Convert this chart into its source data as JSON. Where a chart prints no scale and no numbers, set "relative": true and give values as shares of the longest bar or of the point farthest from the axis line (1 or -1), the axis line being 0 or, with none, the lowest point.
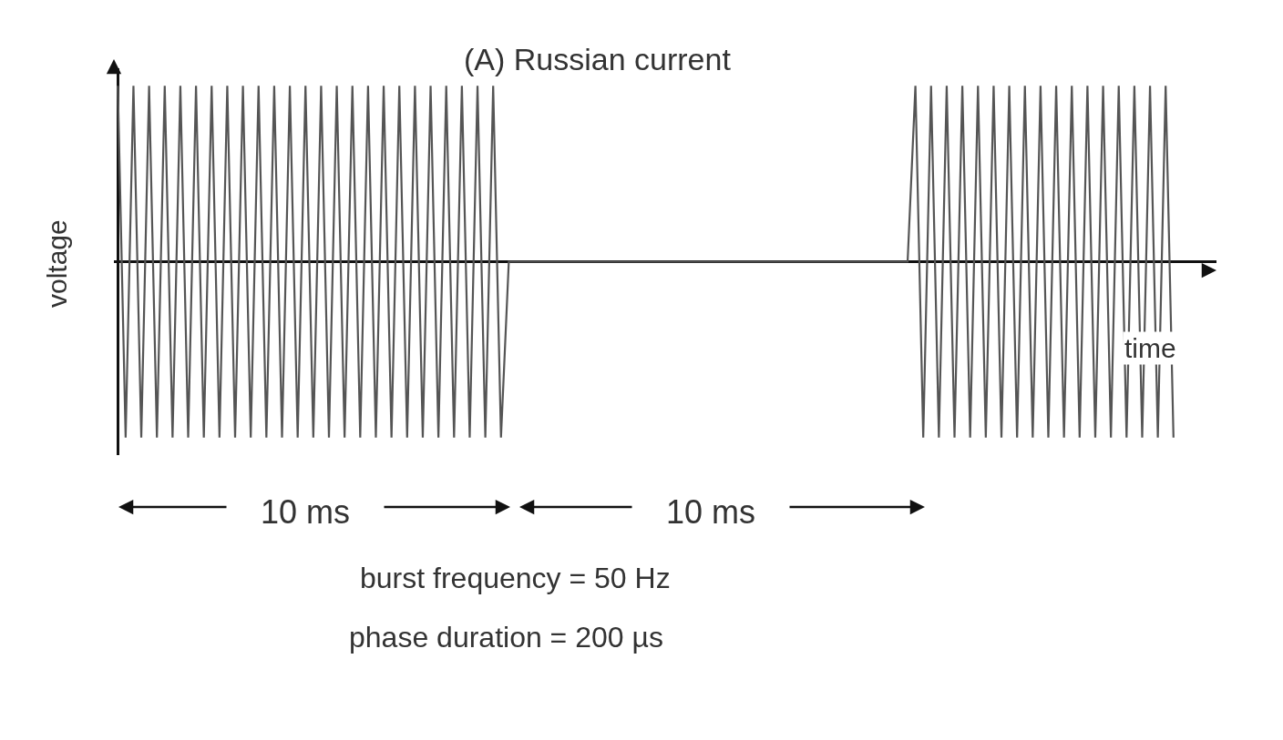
{
  "chart_data": {
    "type": "line",
    "title": "(A) Russian current",
    "xlabel": "time",
    "ylabel": "voltage",
    "relative": true,
    "color": "#555555",
    "categories": [
      null,
      null,
      null,
      null,
      null,
      null,
      null,
      null,
      null,
      null,
      null,
      null,
      null,
      null,
      null,
      null,
      null,
      null,
      null,
      null,
      null,
      null,
      null,
      null,
      null,
      null,
      null,
      null,
      null,
      null,
      null,
      null,
      null,
      null,
      null,
      null,
      null,
      null,
      null,
      null,
      null,
      null,
      null,
      null,
      null,
      null,
      null,
      null,
      null,
      null,
      null,
      null,
      null,
      null,
      null,
      null,
      null,
      null,
      null,
      null,
      null,
      null,
      null,
      null,
      null,
      null,
      null,
      null,
      null,
      null,
      null,
      null,
      null,
      null,
      null,
      null,
      null,
      null,
      null,
      null,
      null,
      null,
      null,
      null,
      null,
      null,
      null,
      null,
      null,
      null,
      null,
      null,
      null,
      null,
      null,
      null,
      null,
      null,
      null,
      null,
      null,
      null,
      null,
      null,
      null,
      null,
      null,
      null,
      null,
      null,
      null,
      null,
      null,
      null,
      null,
      null,
      null,
      null,
      null,
      null,
      null,
      null,
      null,
      null,
      null,
      null,
      null,
      null,
      null,
      null,
      null,
      null,
      null,
      null,
      null,
      null
    ],
    "values": [
      1,
      -1,
      1,
      -1,
      1,
      -1,
      1,
      -1,
      1,
      -1,
      1,
      -1,
      1,
      -1,
      1,
      -1,
      1,
      -1,
      1,
      -1,
      1,
      -1,
      1,
      -1,
      1,
      -1,
      1,
      -1,
      1,
      -1,
      1,
      -1,
      1,
      -1,
      1,
      -1,
      1,
      -1,
      1,
      -1,
      1,
      -1,
      1,
      -1,
      1,
      -1,
      1,
      -1,
      1,
      -1,
      0,
      0,
      0,
      0,
      0,
      0,
      0,
      0,
      0,
      0,
      0,
      0,
      0,
      0,
      0,
      0,
      0,
      0,
      0,
      0,
      0,
      0,
      0,
      0,
      0,
      0,
      0,
      0,
      0,
      0,
      0,
      0,
      0,
      0,
      0,
      0,
      0,
      0,
      0,
      0,
      0,
      0,
      0,
      0,
      0,
      0,
      0,
      0,
      0,
      0,
      0,
      0,
      1,
      -1,
      1,
      -1,
      1,
      -1,
      1,
      -1,
      1,
      -1,
      1,
      -1,
      1,
      -1,
      1,
      -1,
      1,
      -1,
      1,
      -1,
      1,
      -1,
      1,
      -1,
      1,
      -1,
      1,
      -1,
      1,
      -1,
      1,
      -1,
      1,
      -1
    ],
    "annotations": [
      "10 ms",
      "10 ms",
      "burst frequency = 50 Hz",
      "phase duration = 200 µs"
    ]
  }
}
